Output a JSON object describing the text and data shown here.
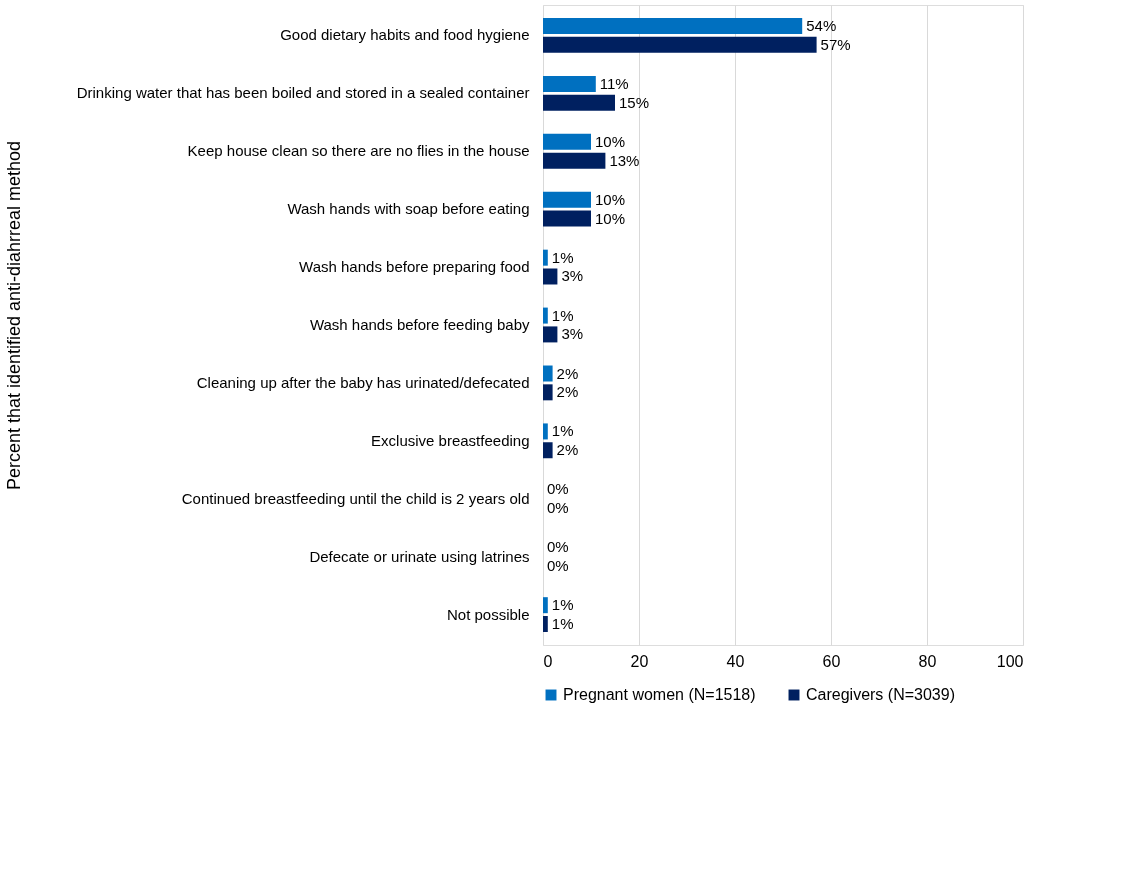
{
  "chart_data": {
    "type": "bar",
    "orientation": "horizontal",
    "ylabel": "Percent that identified anti-diahrreal method",
    "categories": [
      "Good dietary habits and food hygiene",
      "Drinking water that has been boiled and stored in a sealed container",
      "Keep house clean so there are no flies in the house",
      "Wash hands with soap before eating",
      "Wash hands before preparing food",
      "Wash hands before feeding baby",
      "Cleaning up after the baby has urinated/defecated",
      "Exclusive breastfeeding",
      "Continued breastfeeding until the child is 2 years old",
      "Defecate or urinate using latrines",
      "Not possible"
    ],
    "series": [
      {
        "name": "Pregnant women (N=1518)",
        "color": "#0070c0",
        "values": [
          54,
          11,
          10,
          10,
          1,
          1,
          2,
          1,
          0,
          0,
          1
        ],
        "value_labels": [
          "54%",
          "11%",
          "10%",
          "10%",
          "1%",
          "1%",
          "2%",
          "1%",
          "0%",
          "0%",
          "1%"
        ]
      },
      {
        "name": "Caregivers (N=3039)",
        "color": "#002060",
        "values": [
          57,
          15,
          13,
          10,
          3,
          3,
          2,
          2,
          0,
          0,
          1
        ],
        "value_labels": [
          "57%",
          "15%",
          "13%",
          "10%",
          "3%",
          "3%",
          "2%",
          "2%",
          "0%",
          "0%",
          "1%"
        ]
      }
    ],
    "xlim": [
      0,
      100
    ],
    "xticks": [
      0,
      20,
      40,
      60,
      80,
      100
    ],
    "grid": "x",
    "legend": "bottom"
  }
}
